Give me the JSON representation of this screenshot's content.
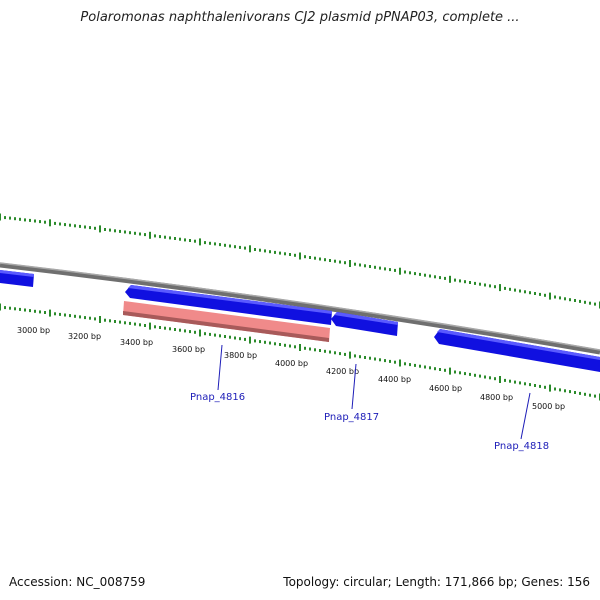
{
  "title": "Polaromonas naphthalenivorans CJ2 plasmid pPNAP03, complete ...",
  "footer": {
    "accession": "Accession: NC_008759",
    "summary": "Topology: circular; Length: 171,866 bp; Genes: 156"
  },
  "colors": {
    "backbone": "#808080",
    "gene": "#1010e8",
    "gene_highlight": "#f08080",
    "tick": "#2a8a2a",
    "label": "#1d1db8"
  },
  "ticks": [
    {
      "label": "3000 bp"
    },
    {
      "label": "3200 bp"
    },
    {
      "label": "3400 bp"
    },
    {
      "label": "3600 bp"
    },
    {
      "label": "3800 bp"
    },
    {
      "label": "4000 bp"
    },
    {
      "label": "4200 bp"
    },
    {
      "label": "4400 bp"
    },
    {
      "label": "4600 bp"
    },
    {
      "label": "4800 bp"
    },
    {
      "label": "5000 bp"
    }
  ],
  "genes": [
    {
      "label": "Pnap_4816"
    },
    {
      "label": "Pnap_4817"
    },
    {
      "label": "Pnap_4818"
    }
  ]
}
